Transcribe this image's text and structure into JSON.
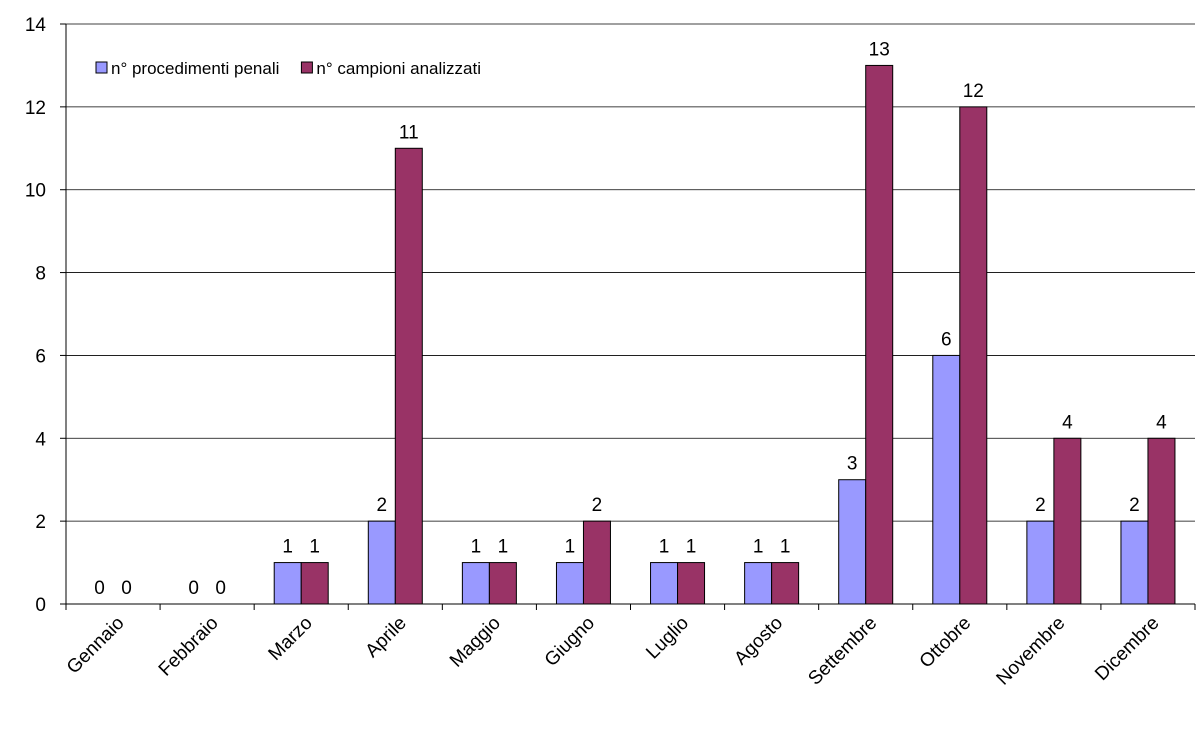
{
  "chart_data": {
    "type": "bar",
    "categories": [
      "Gennaio",
      "Febbraio",
      "Marzo",
      "Aprile",
      "Maggio",
      "Giugno",
      "Luglio",
      "Agosto",
      "Settembre",
      "Ottobre",
      "Novembre",
      "Dicembre"
    ],
    "series": [
      {
        "name": "n° procedimenti penali",
        "color": "#9999ff",
        "values": [
          0,
          0,
          1,
          2,
          1,
          1,
          1,
          1,
          3,
          6,
          2,
          2
        ]
      },
      {
        "name": "n° campioni analizzati",
        "color": "#993366",
        "values": [
          0,
          0,
          1,
          11,
          1,
          2,
          1,
          1,
          13,
          12,
          4,
          4
        ]
      }
    ],
    "ylim": [
      0,
      14
    ],
    "yticks": [
      0,
      2,
      4,
      6,
      8,
      10,
      12,
      14
    ],
    "grid": true,
    "legend": "upper left"
  }
}
